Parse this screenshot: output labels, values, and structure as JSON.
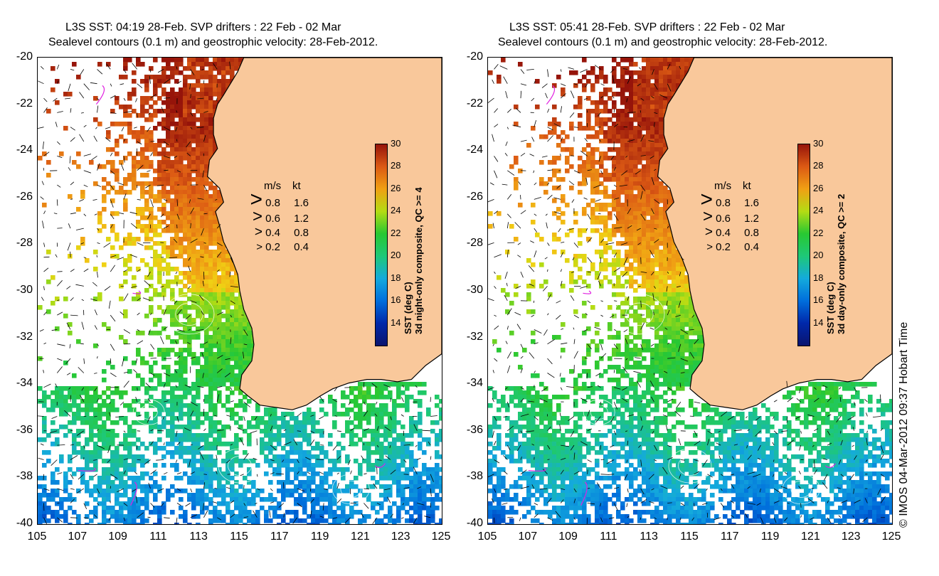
{
  "panels": [
    {
      "title_line1": "L3S SST: 04:19 28-Feb. SVP drifters : 22 Feb - 02 Mar",
      "title_line2": "Sealevel contours (0.1 m) and geostrophic velocity: 28-Feb-2012.",
      "colorbar_label": "SST (deg C)",
      "colorbar_sublabel": "3d night-only composite, QC >= 4"
    },
    {
      "title_line1": "L3S SST: 05:41 28-Feb. SVP drifters : 22 Feb - 02 Mar",
      "title_line2": "Sealevel contours (0.1 m) and geostrophic velocity: 28-Feb-2012.",
      "colorbar_label": "SST (deg C)",
      "colorbar_sublabel": "3d day-only composite, QC >= 2"
    }
  ],
  "axes": {
    "lat_ticks": [
      "-20",
      "-22",
      "-24",
      "-26",
      "-28",
      "-30",
      "-32",
      "-34",
      "-36",
      "-38",
      "-40"
    ],
    "lon_ticks": [
      "105",
      "107",
      "109",
      "111",
      "113",
      "115",
      "117",
      "119",
      "121",
      "123",
      "125"
    ]
  },
  "colorbar": {
    "ticks": [
      "30",
      "28",
      "26",
      "24",
      "22",
      "20",
      "18",
      "16",
      "14"
    ],
    "min": 12,
    "max": 30
  },
  "legend": {
    "header_ms": "m/s",
    "header_kt": "kt",
    "rows": [
      {
        "ms": "0.8",
        "kt": "1.6"
      },
      {
        "ms": "0.6",
        "kt": "1.2"
      },
      {
        "ms": "0.4",
        "kt": "0.8"
      },
      {
        "ms": "0.2",
        "kt": "0.4"
      }
    ]
  },
  "credit": "© IMOS 04-Mar-2012 09:37 Hobart Time",
  "colors": {
    "land": "#f9c89b",
    "sst_warm": "#e8901e",
    "sst_mid": "#38c83c",
    "sst_cool": "#1a8ee0"
  }
}
